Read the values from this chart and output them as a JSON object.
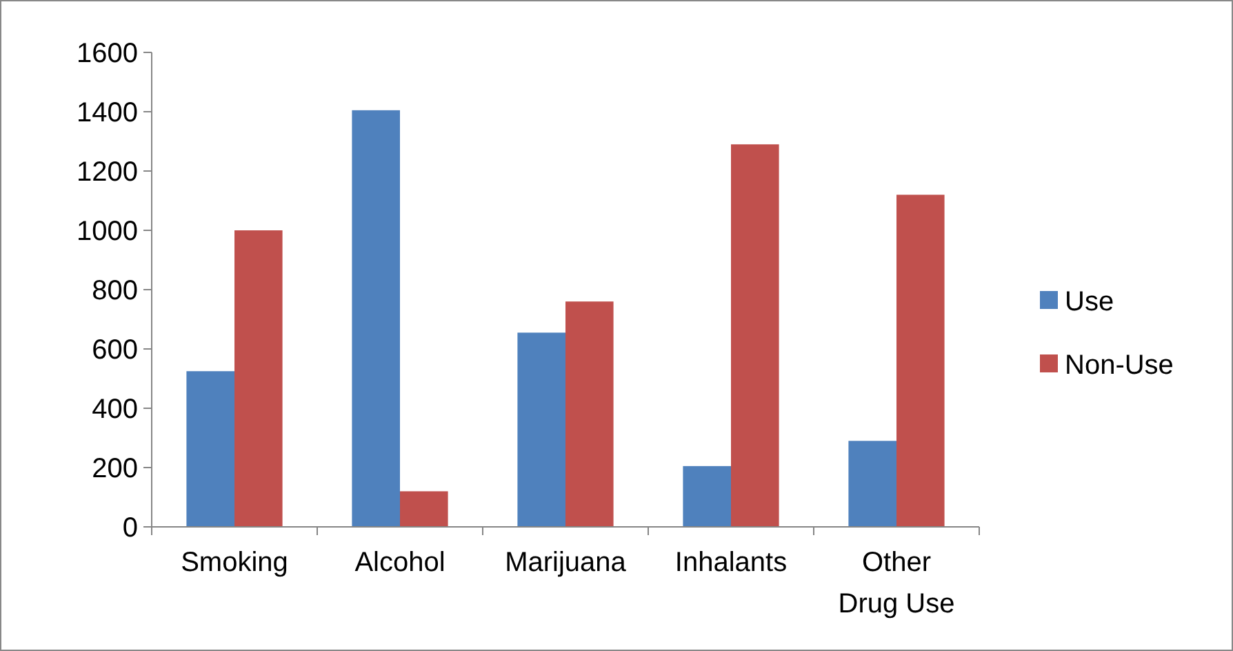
{
  "chart_data": {
    "type": "bar",
    "categories": [
      "Smoking",
      "Alcohol",
      "Marijuana",
      "Inhalants",
      "Other Drug Use"
    ],
    "series": [
      {
        "name": "Use",
        "color": "#4f81bd",
        "values": [
          525,
          1405,
          655,
          205,
          290
        ]
      },
      {
        "name": "Non-Use",
        "color": "#c0504d",
        "values": [
          1000,
          120,
          760,
          1290,
          1120
        ]
      }
    ],
    "ylim": [
      0,
      1600
    ],
    "yticks": [
      0,
      200,
      400,
      600,
      800,
      1000,
      1200,
      1400,
      1600
    ],
    "grid": false,
    "legend": "right"
  }
}
